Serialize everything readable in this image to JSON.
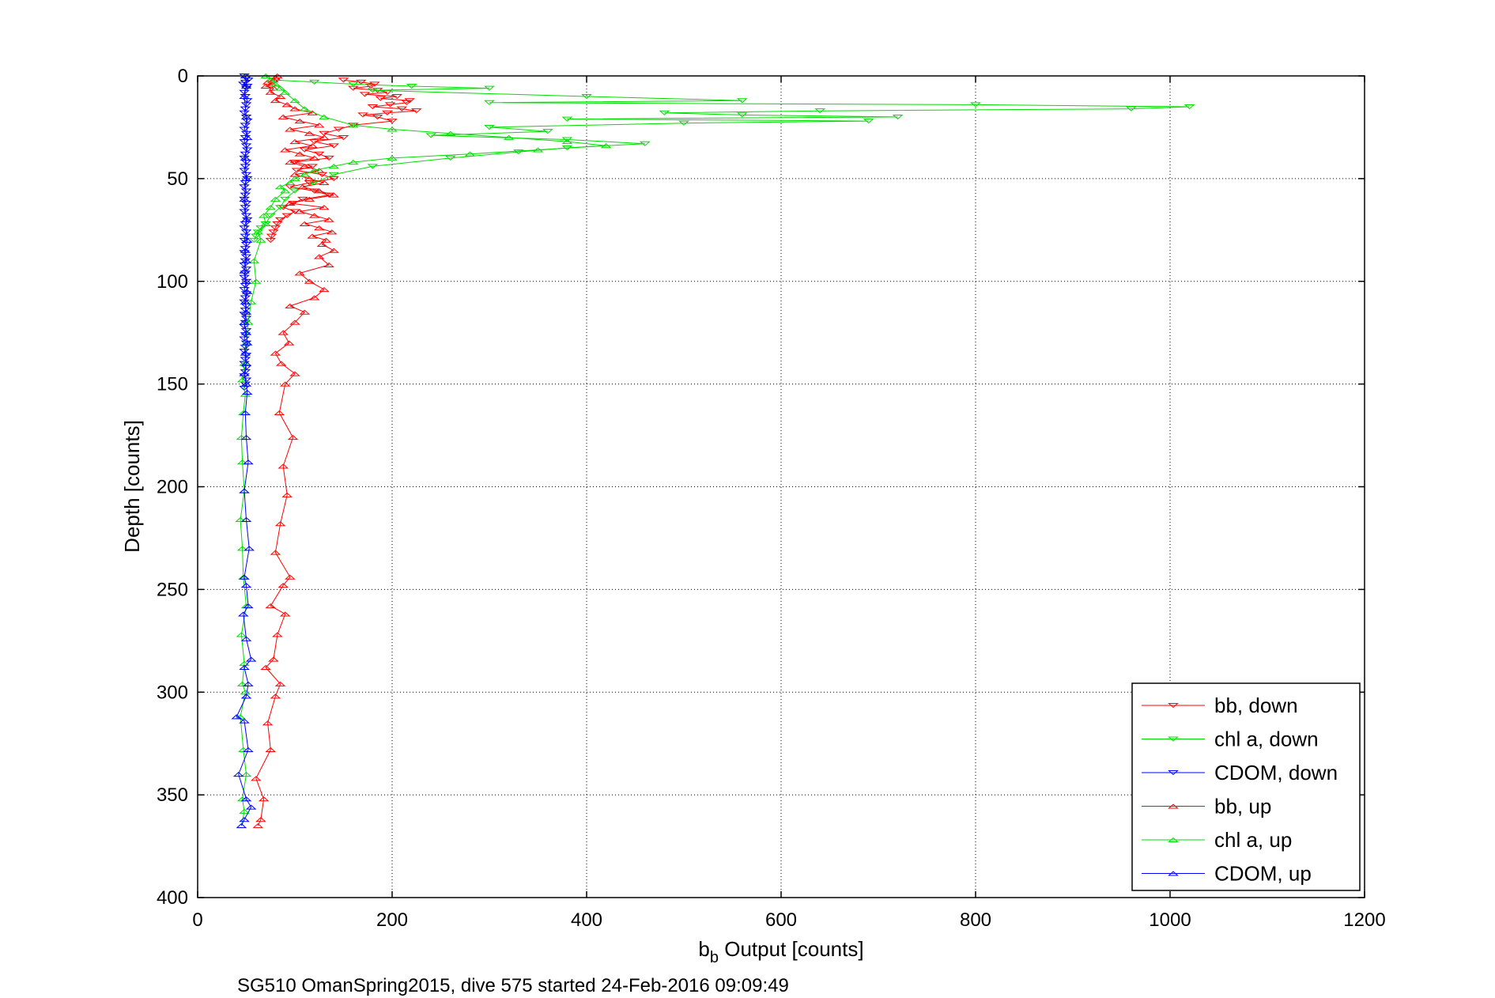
{
  "chart_data": {
    "type": "line",
    "title": "",
    "xlabel": {
      "main": "b",
      "sub": "b",
      "rest": " Output [counts]"
    },
    "ylabel": "Depth [counts]",
    "caption": "SG510 OmanSpring2015, dive 575 started 24-Feb-2016 09:09:49",
    "xlim": [
      0,
      1200
    ],
    "ylim": [
      0,
      400
    ],
    "y_reversed": true,
    "grid": true,
    "xticks": [
      "0",
      "200",
      "400",
      "600",
      "800",
      "1000",
      "1200"
    ],
    "yticks": [
      "0",
      "50",
      "100",
      "150",
      "200",
      "250",
      "300",
      "350",
      "400"
    ],
    "legend_position": "bottom-right",
    "series": [
      {
        "name": "bb, down",
        "color": "#ff0000",
        "marker": "triangle-down",
        "lines": true,
        "x": [
          150,
          168,
          182,
          178,
          160,
          185,
          195,
          172,
          205,
          188,
          218,
          215,
          198,
          180,
          210,
          225,
          195,
          170,
          185,
          200,
          160,
          145,
          130,
          150,
          120,
          140,
          110,
          125,
          135,
          100,
          118,
          102,
          128,
          140,
          115,
          95,
          120,
          135,
          108,
          98,
          88,
          100,
          92,
          85,
          82,
          80,
          78,
          76,
          75
        ],
        "y": [
          2,
          3,
          4,
          5,
          6,
          7,
          8,
          9,
          10,
          11,
          12,
          13,
          14,
          15,
          16,
          17,
          18,
          19,
          20,
          22,
          24,
          26,
          28,
          30,
          32,
          34,
          36,
          38,
          40,
          42,
          44,
          46,
          48,
          50,
          52,
          54,
          56,
          58,
          60,
          62,
          64,
          66,
          68,
          70,
          72,
          74,
          76,
          78,
          80
        ]
      },
      {
        "name": "chl a, down",
        "color": "#00dd00",
        "marker": "triangle-down",
        "lines": true,
        "x": [
          80,
          120,
          160,
          220,
          300,
          180,
          400,
          560,
          300,
          800,
          1020,
          960,
          640,
          480,
          560,
          720,
          380,
          690,
          500,
          300,
          360,
          240,
          380,
          460,
          380,
          330,
          260,
          180,
          140,
          120,
          100,
          90,
          85,
          75,
          70,
          65,
          62,
          60,
          58
        ],
        "y": [
          2,
          3,
          4,
          5,
          6,
          7,
          10,
          12,
          13,
          14,
          15,
          16,
          17,
          18,
          19,
          20,
          21,
          22,
          23,
          25,
          27,
          29,
          31,
          33,
          35,
          37,
          40,
          44,
          48,
          52,
          56,
          60,
          64,
          68,
          72,
          74,
          76,
          78,
          80
        ]
      },
      {
        "name": "CDOM, down",
        "color": "#0000ff",
        "marker": "triangle-down",
        "lines": true,
        "x": [
          48,
          50,
          52,
          49,
          47,
          51,
          50,
          48,
          49,
          51,
          50,
          49,
          48,
          50,
          51,
          49,
          48,
          50,
          49,
          48,
          50,
          51,
          49,
          48,
          50,
          49,
          48,
          50,
          51,
          49,
          48,
          50,
          49,
          48,
          50,
          49,
          48,
          50,
          51,
          49,
          48,
          50,
          49,
          48,
          50,
          49,
          48,
          50,
          49,
          48,
          50,
          49,
          48,
          50,
          49,
          48,
          50,
          49,
          48,
          50,
          49,
          48,
          50,
          49,
          48,
          50,
          49,
          48,
          50,
          49,
          48,
          50,
          49,
          48,
          50,
          49,
          48,
          50,
          49,
          48
        ],
        "y": [
          0,
          1,
          2,
          3,
          4,
          5,
          6,
          8,
          10,
          12,
          14,
          16,
          18,
          20,
          22,
          24,
          26,
          28,
          30,
          32,
          34,
          36,
          38,
          40,
          42,
          44,
          46,
          48,
          50,
          52,
          54,
          56,
          58,
          60,
          62,
          64,
          66,
          68,
          70,
          72,
          74,
          76,
          78,
          80,
          82,
          84,
          86,
          88,
          90,
          92,
          94,
          96,
          98,
          100,
          102,
          104,
          106,
          108,
          110,
          112,
          114,
          116,
          118,
          120,
          122,
          124,
          126,
          128,
          130,
          132,
          134,
          136,
          138,
          140,
          142,
          144,
          146,
          148,
          150,
          152
        ]
      },
      {
        "name": "bb, up",
        "color": "#ff0000",
        "marker": "triangle-up",
        "lines": true,
        "x": [
          62,
          65,
          68,
          60,
          75,
          72,
          80,
          85,
          70,
          78,
          82,
          90,
          75,
          88,
          95,
          80,
          85,
          92,
          88,
          98,
          84,
          90,
          100,
          86,
          80,
          94,
          88,
          100,
          110,
          95,
          120,
          130,
          115,
          105,
          135,
          125,
          140,
          128,
          132,
          118,
          138,
          125,
          110,
          135,
          120,
          105,
          130,
          95,
          115,
          140,
          125,
          108,
          130,
          115,
          100,
          125,
          110,
          95,
          120,
          105,
          90,
          118,
          100,
          130,
          115,
          95,
          125,
          105,
          88,
          118,
          100,
          92,
          80,
          85,
          75,
          78,
          70,
          76,
          72,
          78,
          80,
          82
        ],
        "y": [
          365,
          362,
          352,
          342,
          328,
          315,
          302,
          296,
          288,
          284,
          272,
          262,
          258,
          248,
          244,
          232,
          218,
          204,
          190,
          176,
          164,
          150,
          145,
          140,
          135,
          130,
          125,
          120,
          115,
          112,
          108,
          104,
          100,
          96,
          92,
          88,
          85,
          82,
          80,
          78,
          76,
          74,
          72,
          70,
          68,
          66,
          64,
          62,
          60,
          58,
          56,
          54,
          52,
          50,
          48,
          46,
          44,
          42,
          40,
          38,
          36,
          34,
          32,
          30,
          28,
          26,
          24,
          22,
          20,
          18,
          16,
          14,
          12,
          10,
          8,
          6,
          5,
          4,
          3,
          2,
          1,
          0
        ]
      },
      {
        "name": "chl a, up",
        "color": "#00dd00",
        "marker": "triangle-up",
        "lines": true,
        "x": [
          45,
          48,
          46,
          50,
          47,
          44,
          49,
          46,
          48,
          45,
          50,
          47,
          46,
          44,
          48,
          46,
          45,
          47,
          49,
          46,
          48,
          50,
          52,
          55,
          60,
          58,
          65,
          62,
          70,
          68,
          75,
          80,
          90,
          85,
          95,
          100,
          110,
          120,
          140,
          160,
          200,
          280,
          350,
          420,
          380,
          320,
          260,
          200,
          160,
          130,
          110,
          100,
          90,
          85,
          80,
          75,
          70
        ],
        "y": [
          365,
          358,
          352,
          340,
          328,
          312,
          300,
          296,
          286,
          272,
          258,
          244,
          230,
          216,
          202,
          188,
          176,
          164,
          155,
          148,
          140,
          130,
          120,
          110,
          100,
          90,
          80,
          76,
          72,
          68,
          64,
          60,
          56,
          54,
          52,
          50,
          48,
          46,
          44,
          42,
          40,
          38,
          36,
          34,
          32,
          30,
          28,
          26,
          24,
          20,
          16,
          12,
          8,
          6,
          4,
          2,
          0
        ]
      },
      {
        "name": "CDOM, up",
        "color": "#0000ff",
        "marker": "triangle-up",
        "lines": true,
        "x": [
          45,
          48,
          55,
          50,
          42,
          52,
          48,
          40,
          50,
          52,
          48,
          55,
          50,
          47,
          52,
          50,
          48,
          53,
          50,
          48,
          52,
          50,
          49,
          51,
          50,
          48,
          50,
          49,
          51,
          50,
          48,
          50,
          49,
          51,
          50,
          48,
          50,
          49,
          51,
          50,
          48,
          50,
          49,
          51,
          50,
          48,
          50,
          49
        ],
        "y": [
          365,
          362,
          356,
          352,
          340,
          328,
          314,
          312,
          302,
          296,
          288,
          284,
          274,
          262,
          258,
          248,
          244,
          230,
          216,
          202,
          188,
          176,
          164,
          154,
          150,
          145,
          140,
          135,
          130,
          125,
          120,
          115,
          110,
          105,
          100,
          95,
          90,
          85,
          80,
          70,
          60,
          50,
          40,
          30,
          20,
          10,
          5,
          0
        ]
      }
    ]
  }
}
